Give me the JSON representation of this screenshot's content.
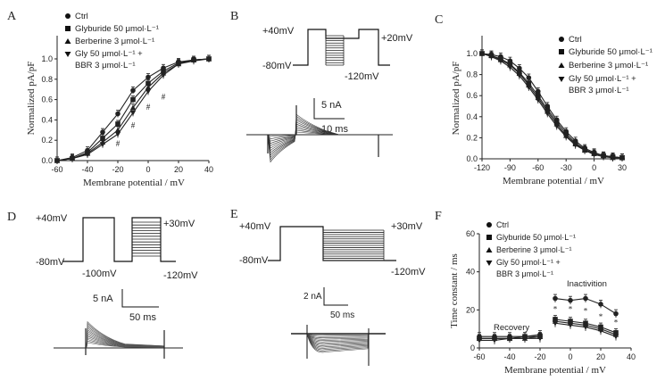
{
  "panels": {
    "A": {
      "letter": "A"
    },
    "B": {
      "letter": "B"
    },
    "C": {
      "letter": "C"
    },
    "D": {
      "letter": "D"
    },
    "E": {
      "letter": "E"
    },
    "F": {
      "letter": "F"
    }
  },
  "legend_items": [
    "Ctrl",
    "Glyburide 50 μmol·L⁻¹",
    "Berberine 3 μmol·L⁻¹",
    "Gly 50 μmol·L⁻¹ +",
    "BBR 3 μmol·L⁻¹"
  ],
  "protocol_labels": {
    "B": {
      "hold": "-80mV",
      "pre": "+40mV",
      "step": "+20mV",
      "end": "-120mV"
    },
    "D": {
      "hold": "-80mV",
      "pre": "+40mV",
      "test": "+30mV",
      "gap": "-100mV",
      "end": "-120mV"
    },
    "E": {
      "hold": "-80mV",
      "pre": "+40mV",
      "step": "+30mV",
      "end": "-120mV"
    }
  },
  "scale_bars": {
    "B": {
      "current": "5 nA",
      "time": "10 ms"
    },
    "D": {
      "current": "5 nA",
      "time": "50 ms"
    },
    "E": {
      "current": "2 nA",
      "time": "50 ms"
    }
  },
  "panelF_annotations": {
    "inactivation": "Inactivition",
    "recovery": "Recovery",
    "star": "*"
  },
  "panelA_annotations": {
    "hash": "#"
  },
  "colors": {
    "ink": "#222222",
    "trace": "#111111"
  },
  "chart_data": [
    {
      "id": "A",
      "type": "line",
      "title": "",
      "xlabel": "Membrane potential / mV",
      "ylabel": "Normalized pA/pF",
      "xlim": [
        -60,
        40
      ],
      "ylim": [
        0,
        1.0
      ],
      "xticks": [
        -60,
        -40,
        -20,
        0,
        20,
        40
      ],
      "yticks": [
        0.0,
        0.2,
        0.4,
        0.6,
        0.8,
        1.0
      ],
      "x": [
        -60,
        -50,
        -40,
        -30,
        -20,
        -10,
        0,
        10,
        20,
        30,
        40
      ],
      "series": [
        {
          "name": "Ctrl",
          "marker": "circle",
          "values": [
            0.0,
            0.03,
            0.1,
            0.28,
            0.46,
            0.69,
            0.82,
            0.91,
            0.97,
            0.99,
            1.0
          ]
        },
        {
          "name": "Glyburide 50 μmol·L⁻¹",
          "marker": "square",
          "values": [
            0.0,
            0.02,
            0.08,
            0.22,
            0.36,
            0.6,
            0.76,
            0.88,
            0.96,
            0.99,
            1.0
          ]
        },
        {
          "name": "Berberine 3 μmol·L⁻¹",
          "marker": "triangle-up",
          "values": [
            0.0,
            0.02,
            0.07,
            0.18,
            0.3,
            0.52,
            0.72,
            0.86,
            0.95,
            0.99,
            1.0
          ]
        },
        {
          "name": "Gly 50 μmol·L⁻¹ + BBR 3 μmol·L⁻¹",
          "marker": "triangle-down",
          "values": [
            0.0,
            0.02,
            0.06,
            0.16,
            0.26,
            0.47,
            0.68,
            0.84,
            0.95,
            0.98,
            1.0
          ]
        }
      ],
      "significance_marks": [
        {
          "x": -20,
          "y": 0.14
        },
        {
          "x": -10,
          "y": 0.32
        },
        {
          "x": 0,
          "y": 0.5
        },
        {
          "x": 10,
          "y": 0.6
        }
      ]
    },
    {
      "id": "C",
      "type": "line",
      "title": "",
      "xlabel": "Membrane potential / mV",
      "ylabel": "Normalized pA/pF",
      "xlim": [
        -120,
        30
      ],
      "ylim": [
        0,
        1.0
      ],
      "xticks": [
        -120,
        -90,
        -60,
        -30,
        0,
        30
      ],
      "yticks": [
        0.0,
        0.2,
        0.4,
        0.6,
        0.8,
        1.0
      ],
      "x": [
        -120,
        -110,
        -100,
        -90,
        -80,
        -70,
        -60,
        -50,
        -40,
        -30,
        -20,
        -10,
        0,
        10,
        20,
        30
      ],
      "series": [
        {
          "name": "Ctrl",
          "marker": "circle",
          "values": [
            1.0,
            0.99,
            0.97,
            0.93,
            0.86,
            0.77,
            0.64,
            0.5,
            0.37,
            0.26,
            0.17,
            0.1,
            0.06,
            0.03,
            0.02,
            0.01
          ]
        },
        {
          "name": "Glyburide 50 μmol·L⁻¹",
          "marker": "square",
          "values": [
            1.0,
            0.98,
            0.95,
            0.9,
            0.82,
            0.72,
            0.6,
            0.47,
            0.35,
            0.24,
            0.15,
            0.09,
            0.05,
            0.03,
            0.02,
            0.01
          ]
        },
        {
          "name": "Berberine 3 μmol·L⁻¹",
          "marker": "triangle-up",
          "values": [
            1.0,
            0.98,
            0.94,
            0.89,
            0.81,
            0.7,
            0.58,
            0.45,
            0.33,
            0.22,
            0.14,
            0.08,
            0.05,
            0.03,
            0.01,
            0.01
          ]
        },
        {
          "name": "Gly 50 μmol·L⁻¹ + BBR 3 μmol·L⁻¹",
          "marker": "triangle-down",
          "values": [
            1.0,
            0.97,
            0.93,
            0.87,
            0.79,
            0.68,
            0.56,
            0.43,
            0.31,
            0.21,
            0.13,
            0.08,
            0.04,
            0.02,
            0.01,
            0.01
          ]
        }
      ]
    },
    {
      "id": "F",
      "type": "line",
      "title": "",
      "xlabel": "Membrane potential / mV",
      "ylabel": "Time constant / ms",
      "xlim": [
        -60,
        40
      ],
      "ylim": [
        0,
        60
      ],
      "xticks": [
        -60,
        -40,
        -20,
        0,
        20,
        40
      ],
      "yticks": [
        0,
        20,
        40,
        60
      ],
      "groups": [
        {
          "name": "Recovery",
          "x": [
            -60,
            -50,
            -40,
            -30,
            -20
          ],
          "series": [
            {
              "name": "Ctrl",
              "marker": "circle",
              "values": [
                6,
                6,
                6,
                6,
                7
              ]
            },
            {
              "name": "Glyburide 50 μmol·L⁻¹",
              "marker": "square",
              "values": [
                5,
                5,
                5,
                6,
                6
              ]
            },
            {
              "name": "Berberine 3 μmol·L⁻¹",
              "marker": "triangle-up",
              "values": [
                5,
                5,
                5,
                5,
                6
              ]
            },
            {
              "name": "Gly 50 μmol·L⁻¹ + BBR 3 μmol·L⁻¹",
              "marker": "triangle-down",
              "values": [
                4,
                4,
                5,
                5,
                5
              ]
            }
          ]
        },
        {
          "name": "Inactivation",
          "x": [
            -10,
            0,
            10,
            20,
            30
          ],
          "series": [
            {
              "name": "Ctrl",
              "marker": "circle",
              "values": [
                26,
                25,
                26,
                23,
                18
              ]
            },
            {
              "name": "Glyburide 50 μmol·L⁻¹",
              "marker": "square",
              "values": [
                15,
                14,
                13,
                11,
                8
              ]
            },
            {
              "name": "Berberine 3 μmol·L⁻¹",
              "marker": "triangle-up",
              "values": [
                14,
                13,
                12,
                10,
                7
              ]
            },
            {
              "name": "Gly 50 μmol·L⁻¹ + BBR 3 μmol·L⁻¹",
              "marker": "triangle-down",
              "values": [
                13,
                12,
                11,
                9,
                6
              ]
            }
          ],
          "significance_marks": [
            {
              "x": -10,
              "y": 19
            },
            {
              "x": 0,
              "y": 19
            },
            {
              "x": 10,
              "y": 18
            },
            {
              "x": 20,
              "y": 15
            },
            {
              "x": 30,
              "y": 12
            }
          ]
        }
      ]
    }
  ]
}
